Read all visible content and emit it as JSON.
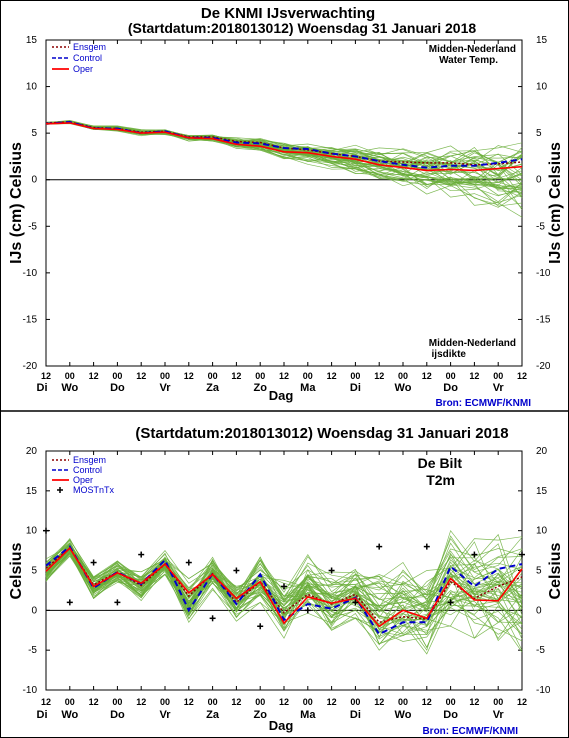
{
  "sources": "Bron: ECMWF/KNMI",
  "chart_data": [
    {
      "type": "line",
      "title": "De KNMI IJsverwachting",
      "subtitle": "(Startdatum:2018013012)  Woensdag 31 Januari 2018",
      "ylabel_left": "IJs (cm)  Celsius",
      "ylabel_right": "IJs (cm)  Celsius",
      "xlabel": "Dag",
      "ylim": [
        -20,
        15
      ],
      "yticks": [
        15,
        10,
        5,
        0,
        -5,
        -10,
        -15,
        -20
      ],
      "x_hour_labels": [
        "12",
        "00",
        "12",
        "00",
        "12",
        "00",
        "12",
        "00",
        "12",
        "00",
        "12",
        "00",
        "12",
        "00",
        "12",
        "00",
        "12",
        "00",
        "12",
        "00",
        "12"
      ],
      "day_labels": [
        "Di",
        "Wo",
        "Do",
        "Vr",
        "Za",
        "Zo",
        "Ma",
        "Di",
        "Wo",
        "Do",
        "Vr"
      ],
      "annotation_top": [
        "Midden-Nederland",
        "Water Temp."
      ],
      "annotation_bottom": [
        "Midden-Nederland",
        "ijsdikte"
      ],
      "legend": [
        {
          "label": "Ensgem",
          "color": "#8B0000",
          "style": "dotted"
        },
        {
          "label": "Control",
          "color": "#0000CC",
          "style": "dashed"
        },
        {
          "label": "Oper",
          "color": "#FF0000",
          "style": "solid"
        }
      ],
      "x_start": 1,
      "x_step": 0.5,
      "series": [
        {
          "name": "Ensgem",
          "color": "#8B0000",
          "values": [
            6.1,
            6.2,
            5.6,
            5.5,
            5.1,
            5.2,
            4.6,
            4.6,
            4.1,
            4.0,
            3.4,
            3.2,
            2.8,
            2.5,
            2.0,
            1.9,
            1.8,
            1.8,
            1.6,
            1.7,
            1.9
          ]
        },
        {
          "name": "Control",
          "color": "#0000CC",
          "values": [
            6.0,
            6.2,
            5.5,
            5.5,
            5.0,
            5.2,
            4.5,
            4.5,
            4.0,
            3.9,
            3.4,
            3.3,
            2.8,
            2.5,
            2.0,
            1.6,
            1.3,
            1.5,
            1.5,
            1.8,
            2.2
          ]
        },
        {
          "name": "Oper",
          "color": "#FF0000",
          "values": [
            6.0,
            6.1,
            5.5,
            5.4,
            5.0,
            5.1,
            4.5,
            4.4,
            3.8,
            3.6,
            3.0,
            2.9,
            2.5,
            2.2,
            1.6,
            1.3,
            1.0,
            1.1,
            1.0,
            1.2,
            1.4
          ]
        }
      ],
      "ensemble_spread": {
        "color": "#6AAE3A",
        "low": [
          5.9,
          6.0,
          5.3,
          5.2,
          4.7,
          4.8,
          4.1,
          4.0,
          3.3,
          3.0,
          2.1,
          1.6,
          1.0,
          0.3,
          -0.4,
          -1.0,
          -1.7,
          -2.2,
          -3.0,
          -4.0,
          -5.0
        ],
        "high": [
          6.2,
          6.4,
          5.8,
          5.8,
          5.4,
          5.5,
          4.9,
          5.0,
          4.6,
          4.6,
          4.1,
          4.0,
          3.8,
          3.8,
          3.6,
          3.6,
          3.8,
          4.0,
          4.2,
          4.4,
          4.6
        ]
      }
    },
    {
      "type": "line",
      "title": "(Startdatum:2018013012)  Woensdag 31 Januari 2018",
      "ylabel_left": "Celsius",
      "ylabel_right": "Celsius",
      "xlabel": "Dag",
      "ylim": [
        -10,
        20
      ],
      "yticks": [
        20,
        15,
        10,
        5,
        0,
        -5,
        -10
      ],
      "x_hour_labels": [
        "12",
        "00",
        "12",
        "00",
        "12",
        "00",
        "12",
        "00",
        "12",
        "00",
        "12",
        "00",
        "12",
        "00",
        "12",
        "00",
        "12",
        "00",
        "12",
        "00",
        "12"
      ],
      "day_labels": [
        "Di",
        "Wo",
        "Do",
        "Vr",
        "Za",
        "Zo",
        "Ma",
        "Di",
        "Wo",
        "Do",
        "Vr"
      ],
      "annotation_top": [
        "De Bilt",
        "T2m"
      ],
      "legend": [
        {
          "label": "Ensgem",
          "color": "#8B0000",
          "style": "dotted"
        },
        {
          "label": "Control",
          "color": "#0000CC",
          "style": "dashed"
        },
        {
          "label": "Oper",
          "color": "#FF0000",
          "style": "solid"
        },
        {
          "label": "MOSTnTx",
          "color": "#000000",
          "style": "marker",
          "label_color": "#0000CC"
        }
      ],
      "x_start": 1,
      "x_step": 0.5,
      "series": [
        {
          "name": "Ensgem",
          "color": "#8B0000",
          "values": [
            5.3,
            7.8,
            3.2,
            4.8,
            3.1,
            5.8,
            1.8,
            4.6,
            1.0,
            3.6,
            -0.3,
            2.0,
            0.8,
            2.0,
            -1.5,
            -0.8,
            -1.1,
            3.6,
            1.5,
            3.0,
            4.2
          ]
        },
        {
          "name": "Control",
          "color": "#0000CC",
          "values": [
            5.6,
            8.0,
            2.8,
            4.8,
            3.3,
            6.3,
            0.0,
            4.6,
            0.8,
            4.5,
            -1.2,
            0.8,
            0.2,
            1.6,
            -3.0,
            -1.5,
            -1.5,
            5.5,
            3.0,
            5.2,
            5.8
          ]
        },
        {
          "name": "Oper",
          "color": "#FF0000",
          "values": [
            4.9,
            7.8,
            3.0,
            4.7,
            3.4,
            5.8,
            2.2,
            4.5,
            1.5,
            3.6,
            -1.6,
            1.7,
            0.9,
            1.5,
            -2.0,
            0.0,
            -1.0,
            4.0,
            1.3,
            1.2,
            5.2
          ]
        }
      ],
      "mos": {
        "x_index": [
          2,
          4,
          6,
          8,
          10,
          12,
          14,
          16,
          18,
          20,
          22,
          24,
          26,
          28,
          30,
          32,
          34,
          36,
          38,
          40,
          42
        ],
        "values": [
          10,
          1,
          6,
          1,
          7,
          null,
          6,
          -1,
          5,
          -2,
          3,
          0,
          5,
          1,
          8,
          null,
          8,
          1,
          7,
          null,
          7
        ]
      },
      "ensemble_spread": {
        "color": "#6AAE3A",
        "low": [
          3.5,
          6.8,
          1.5,
          3.5,
          1.2,
          4.5,
          -1.5,
          2.5,
          -1.5,
          1.0,
          -3.5,
          -1.0,
          -2.5,
          -1.0,
          -5.0,
          -4.0,
          -5.5,
          -2.0,
          -3.5,
          -4.0,
          -5.5
        ],
        "high": [
          6.5,
          9.0,
          4.5,
          6.2,
          5.0,
          7.5,
          4.0,
          7.0,
          4.0,
          7.0,
          4.5,
          7.0,
          5.0,
          6.5,
          4.5,
          6.0,
          5.0,
          10.0,
          9.0,
          9.5,
          10.0
        ]
      }
    }
  ]
}
